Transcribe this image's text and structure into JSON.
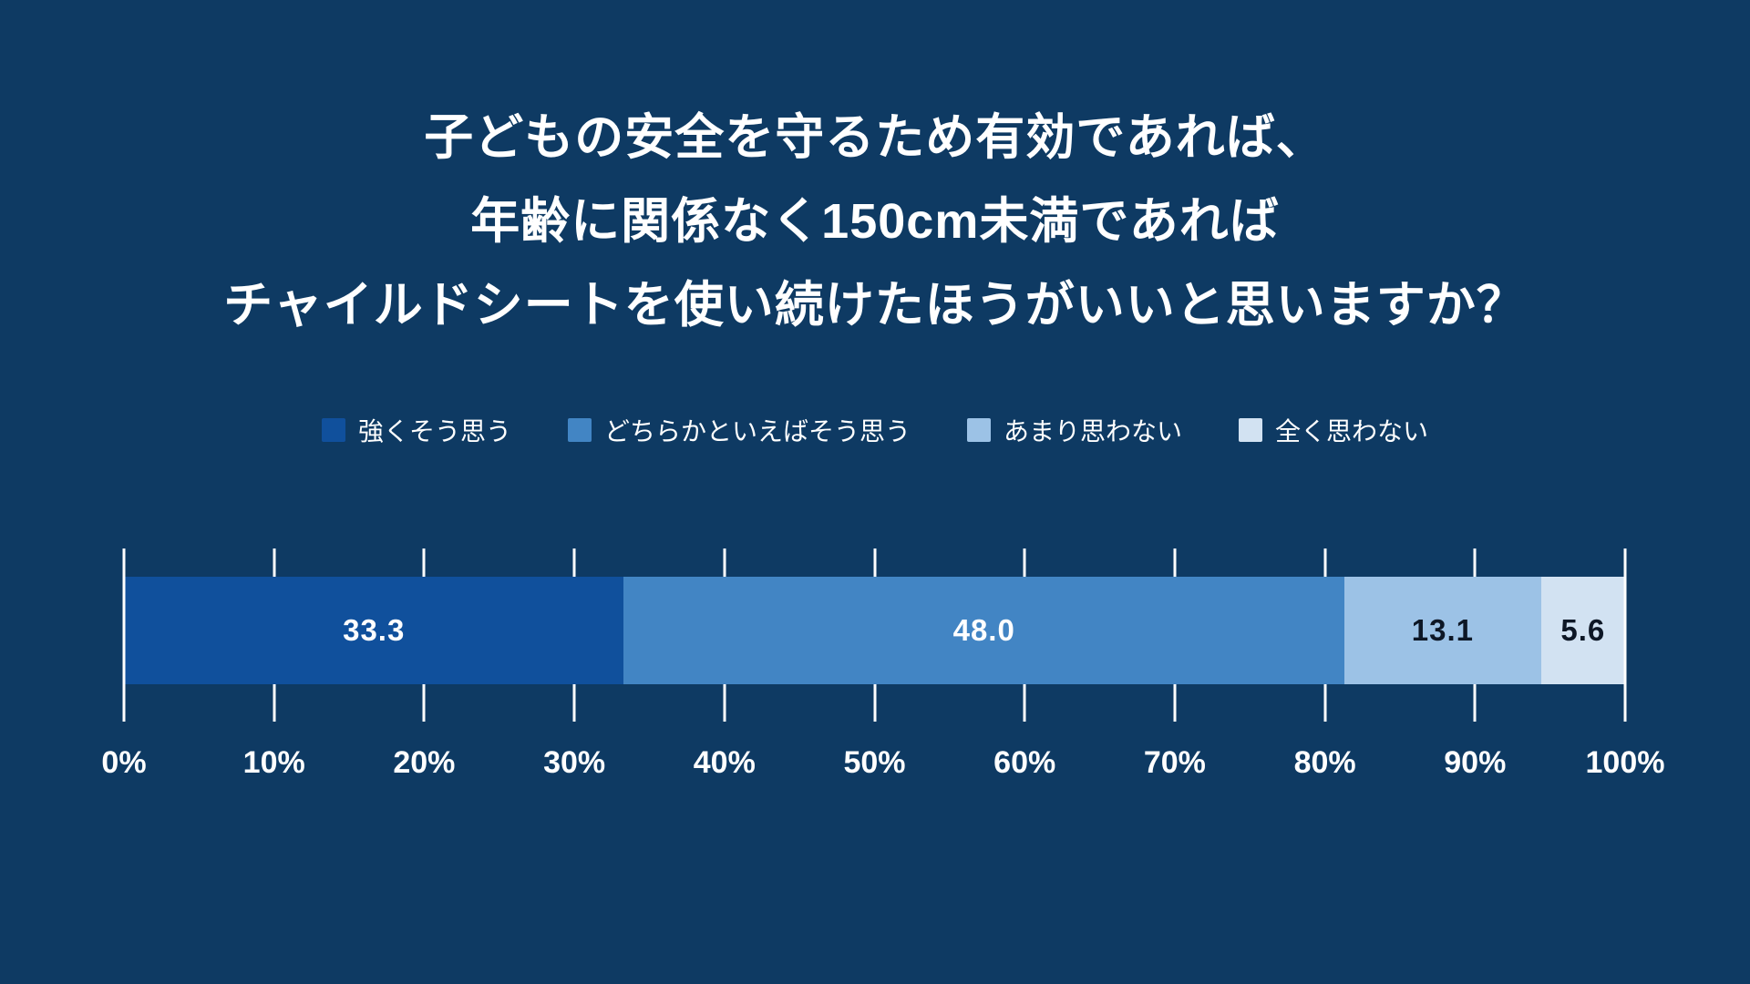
{
  "chart_data": {
    "type": "bar",
    "variant": "horizontal-stacked-percentage",
    "title_lines": [
      "子どもの安全を守るため有効であれば、",
      "年齢に関係なく150cm未満であれば",
      "チャイルドシートを使い続けたほうがいいと思いますか？"
    ],
    "series": [
      {
        "name": "強くそう思う",
        "value": 33.3,
        "label": "33.3",
        "color": "#10509c",
        "label_color": "#ffffff"
      },
      {
        "name": "どちらかといえばそう思う",
        "value": 48.0,
        "label": "48.0",
        "color": "#4285c4",
        "label_color": "#ffffff"
      },
      {
        "name": "あまり思わない",
        "value": 13.1,
        "label": "13.1",
        "color": "#9cc2e6",
        "label_color": "#0d1726"
      },
      {
        "name": "全く思わない",
        "value": 5.6,
        "label": "5.6",
        "color": "#d2e2f2",
        "label_color": "#0d1726"
      }
    ],
    "x_ticks": [
      "0%",
      "10%",
      "20%",
      "30%",
      "40%",
      "50%",
      "60%",
      "70%",
      "80%",
      "90%",
      "100%"
    ],
    "xlim": [
      0,
      100
    ],
    "legend_position": "top",
    "grid": "vertical-ticks",
    "colors": {
      "background": "#0e3a63",
      "tick": "#ffffff",
      "text": "#ffffff"
    }
  }
}
